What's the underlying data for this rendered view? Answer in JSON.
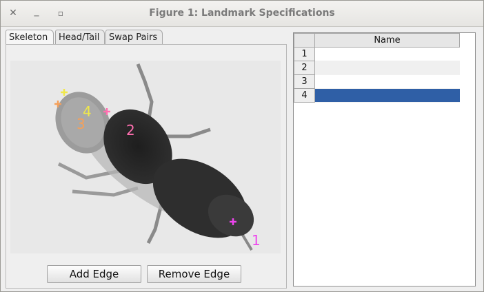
{
  "window": {
    "title": "Figure 1: Landmark Specifications",
    "close_glyph": "✕",
    "min_glyph": "_",
    "max_glyph": "▫"
  },
  "tabs": [
    "Skeleton",
    "Head/Tail",
    "Swap Pairs"
  ],
  "buttons": {
    "add_edge": "Add Edge",
    "remove_edge": "Remove Edge"
  },
  "landmarks": [
    {
      "label": "1",
      "color": "#ee44ee"
    },
    {
      "label": "2",
      "color": "#ff6fb0"
    },
    {
      "label": "3",
      "color": "#f5a05a"
    },
    {
      "label": "4",
      "color": "#f0e84a"
    }
  ],
  "table": {
    "header": "Name",
    "rows": [
      {
        "index": "1",
        "name": ""
      },
      {
        "index": "2",
        "name": ""
      },
      {
        "index": "3",
        "name": ""
      },
      {
        "index": "4",
        "name": "",
        "selected": true
      }
    ]
  }
}
